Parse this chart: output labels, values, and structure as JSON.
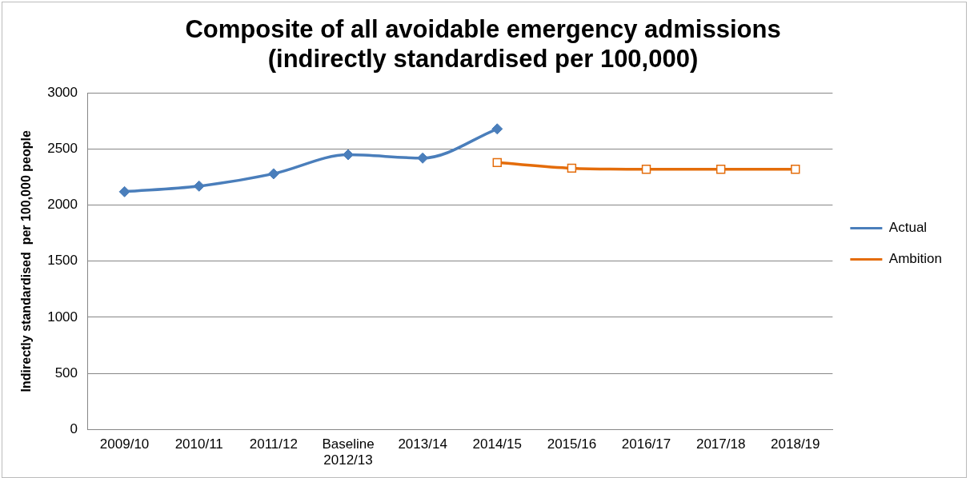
{
  "chart_data": {
    "type": "line",
    "title": "Composite of all avoidable emergency admissions\n(indirectly standardised per 100,000)",
    "ylabel": "Indirectly standardised  per 100,000 people",
    "categories": [
      "2009/10",
      "2010/11",
      "2011/12",
      "Baseline 2012/13",
      "2013/14",
      "2014/15",
      "2015/16",
      "2016/17",
      "2017/18",
      "2018/19"
    ],
    "series": [
      {
        "name": "Actual",
        "color": "#4a7ebb",
        "marker": "diamond",
        "values": [
          2120,
          2170,
          2280,
          2450,
          2420,
          2680,
          null,
          null,
          null,
          null
        ]
      },
      {
        "name": "Ambition",
        "color": "#e46c0a",
        "marker": "square",
        "values": [
          null,
          null,
          null,
          null,
          null,
          2380,
          2330,
          2320,
          2320,
          2320
        ]
      }
    ],
    "ylim": [
      0,
      3000
    ],
    "yticks": [
      0,
      500,
      1000,
      1500,
      2000,
      2500,
      3000
    ],
    "grid": "y",
    "legend": "right"
  }
}
